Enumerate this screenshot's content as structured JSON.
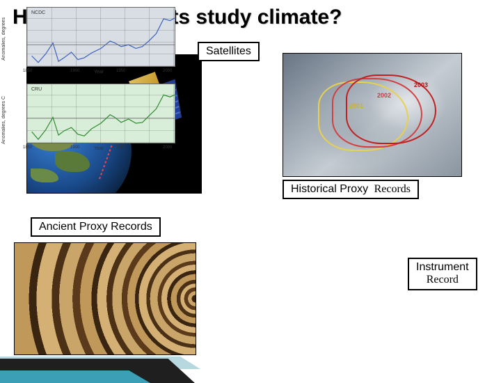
{
  "title": "How do scientists study climate?",
  "labels": {
    "satellites": "Satellites",
    "historical_proxy": "Historical Proxy",
    "historical_records": "Records",
    "ancient_proxy": "Ancient Proxy Records",
    "instrument": "Instrument",
    "instrument_records": "Record"
  },
  "glacier": {
    "years": [
      "2001",
      "2002",
      "2003"
    ],
    "outline_colors": [
      "#e8d050",
      "#d04040",
      "#c02020"
    ]
  },
  "charts": {
    "top": {
      "source": "NCDC",
      "ylabel": "Anomalies, degrees",
      "xlabel": "Year",
      "line_color": "#3a5fbf",
      "background_color": "#d9dee4",
      "xlim": [
        1850,
        2010
      ],
      "ylim": [
        -0.6,
        1.0
      ],
      "xticks": [
        1850,
        1900,
        1950,
        2000
      ],
      "points": [
        [
          1855,
          -0.3
        ],
        [
          1862,
          -0.48
        ],
        [
          1870,
          -0.25
        ],
        [
          1878,
          0.05
        ],
        [
          1884,
          -0.45
        ],
        [
          1890,
          -0.35
        ],
        [
          1898,
          -0.2
        ],
        [
          1905,
          -0.4
        ],
        [
          1912,
          -0.35
        ],
        [
          1920,
          -0.22
        ],
        [
          1930,
          -0.1
        ],
        [
          1940,
          0.1
        ],
        [
          1945,
          0.05
        ],
        [
          1952,
          -0.05
        ],
        [
          1960,
          0.0
        ],
        [
          1968,
          -0.1
        ],
        [
          1975,
          -0.05
        ],
        [
          1982,
          0.1
        ],
        [
          1990,
          0.3
        ],
        [
          1998,
          0.7
        ],
        [
          2005,
          0.65
        ],
        [
          2010,
          0.72
        ]
      ]
    },
    "bottom": {
      "source": "CRU",
      "ylabel": "Anomalies, degrees C",
      "xlabel": "Year",
      "line_color": "#2e8a2e",
      "background_color": "#d9eed9",
      "xlim": [
        1850,
        2010
      ],
      "ylim": [
        -0.6,
        0.8
      ],
      "xticks": [
        1850,
        1900,
        1950,
        2000
      ],
      "points": [
        [
          1855,
          -0.32
        ],
        [
          1862,
          -0.5
        ],
        [
          1870,
          -0.28
        ],
        [
          1878,
          0.02
        ],
        [
          1884,
          -0.4
        ],
        [
          1890,
          -0.3
        ],
        [
          1898,
          -0.22
        ],
        [
          1905,
          -0.38
        ],
        [
          1912,
          -0.42
        ],
        [
          1920,
          -0.25
        ],
        [
          1930,
          -0.12
        ],
        [
          1940,
          0.08
        ],
        [
          1945,
          0.02
        ],
        [
          1952,
          -0.1
        ],
        [
          1960,
          -0.02
        ],
        [
          1968,
          -0.12
        ],
        [
          1975,
          -0.1
        ],
        [
          1982,
          0.05
        ],
        [
          1990,
          0.22
        ],
        [
          1998,
          0.55
        ],
        [
          2005,
          0.5
        ],
        [
          2010,
          0.55
        ]
      ]
    }
  },
  "colors": {
    "title_shadow": "#cccccc",
    "swoosh_dark": "#1f1f1f",
    "swoosh_teal": "#3ba0b5",
    "swoosh_light": "#b8d8df"
  }
}
